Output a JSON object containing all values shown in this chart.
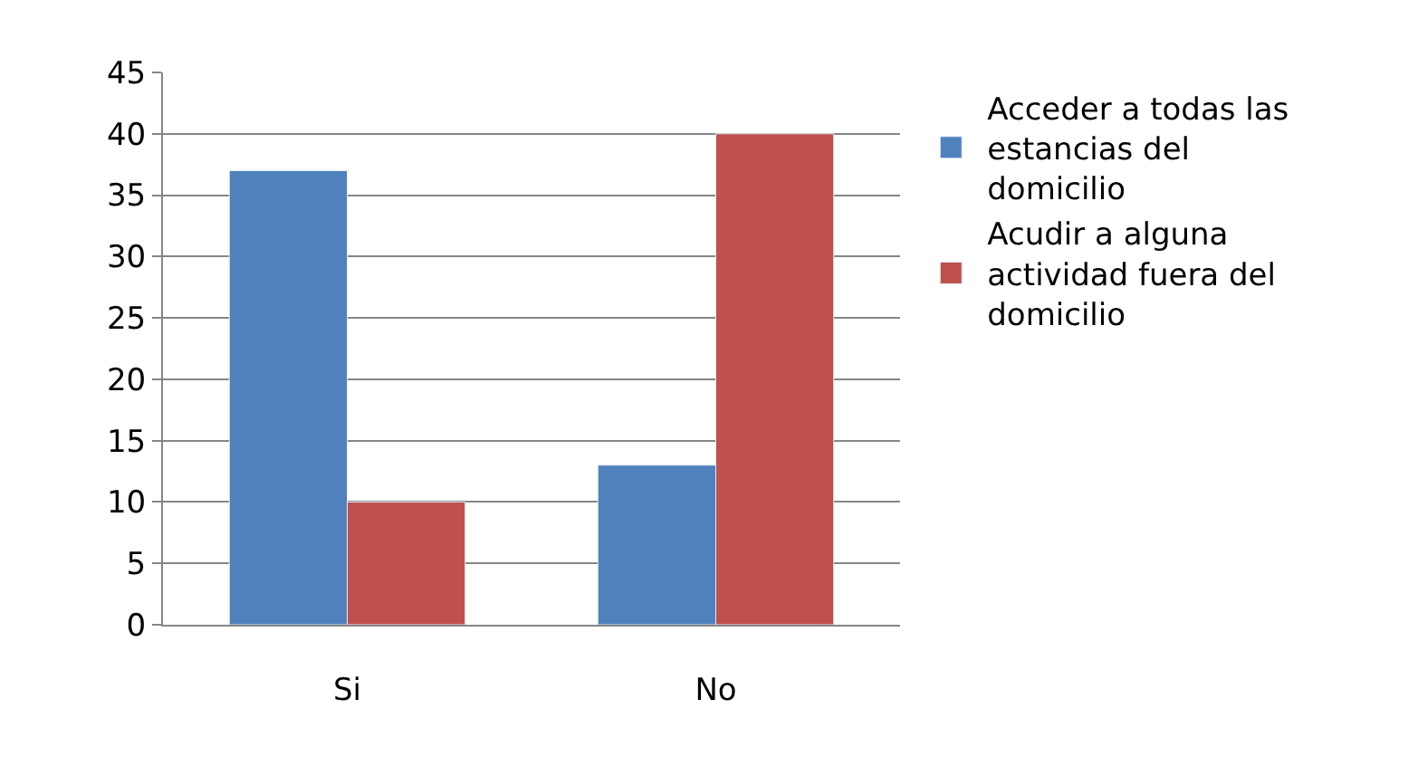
{
  "chart_data": {
    "type": "bar",
    "categories": [
      "Si",
      "No"
    ],
    "series": [
      {
        "name": "Acceder a todas las estancias del domicilio",
        "color": "#4f81bd",
        "values": [
          37,
          13
        ]
      },
      {
        "name": "Acudir a alguna actividad fuera del domicilio",
        "color": "#c0504d",
        "values": [
          10,
          40
        ]
      }
    ],
    "ylim": [
      0,
      45
    ],
    "yticks": [
      0,
      5,
      10,
      15,
      20,
      25,
      30,
      35,
      40,
      45
    ],
    "grid": "y",
    "legend": "right"
  }
}
